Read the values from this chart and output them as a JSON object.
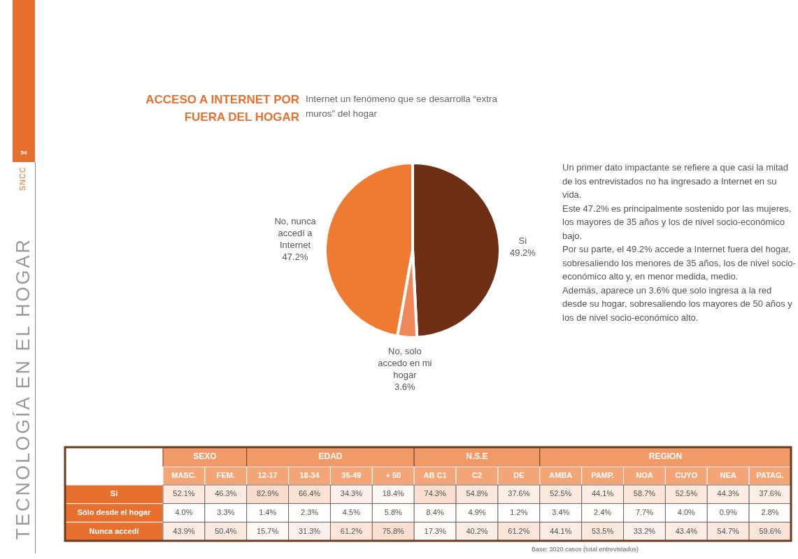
{
  "chart_data": [
    {
      "type": "pie",
      "title": "ACCESO A INTERNET POR FUERA DEL HOGAR",
      "subtitle": "Internet un fenómeno que se desarrolla “extra muros” del hogar",
      "categories": [
        "Si",
        "No, solo accedo en mi hogar",
        "No, nunca accedí a Internet"
      ],
      "values": [
        49.2,
        3.6,
        47.2
      ],
      "colors": [
        "#6e2f15",
        "#f0885a",
        "#ef7a32"
      ],
      "value_labels": [
        "49.2%",
        "3.6%",
        "47.2%"
      ],
      "legend": false,
      "annotations": [
        "Un primer dato impactante se refiere a que casi la mitad de los entrevistados no ha ingresado a Internet en su vida.",
        "Este 47.2% es principalmente sostenido por las mujeres, los mayores de 35 años y los de nivel socio-económico bajo.",
        "Por su parte, el 49.2% accede a Internet fuera del hogar, sobresaliendo los menores de 35 años, los de nivel socio-económico alto y, en menor medida, medio.",
        "Además, aparece un 3.6% que solo ingresa a la red desde su hogar, sobresaliendo los mayores de 50 años y los de nivel socio-económico alto.",
        "SNCC",
        "54",
        "TECNOLOGÍA EN EL HOGAR"
      ]
    },
    {
      "type": "heatmap",
      "categories": [
        "MASC.",
        "FEM.",
        "12-17",
        "18-34",
        "35-49",
        "+ 50",
        "AB C1",
        "C2",
        "DE",
        "AMBA",
        "PAMP.",
        "NOA",
        "CUYO",
        "NEA",
        "PATAG."
      ],
      "y_categories": [
        "Si",
        "Sólo desde el hogar",
        "Nunca accedí"
      ],
      "cells": [
        [
          52.1,
          46.3,
          82.9,
          66.4,
          34.3,
          18.4,
          74.3,
          54.8,
          37.6,
          52.5,
          44.1,
          58.7,
          52.5,
          44.3,
          37.6
        ],
        [
          4.0,
          3.3,
          1.4,
          2.3,
          4.5,
          5.8,
          8.4,
          4.9,
          1.2,
          3.4,
          2.4,
          7.7,
          4.0,
          0.9,
          2.8
        ],
        [
          43.9,
          50.4,
          15.7,
          31.3,
          61.2,
          75.8,
          17.3,
          40.2,
          61.2,
          44.1,
          53.5,
          33.2,
          43.4,
          54.7,
          59.6
        ]
      ],
      "cell_labels": [
        [
          "52.1%",
          "46.3%",
          "82.9%",
          "66.4%",
          "34.3%",
          "18.4%",
          "74.3%",
          "54.8%",
          "37.6%",
          "52.5%",
          "44.1%",
          "58.7%",
          "52.5%",
          "44.3%",
          "37.6%"
        ],
        [
          "4.0%",
          "3.3%",
          "1.4%",
          "2.3%",
          "4.5%",
          "5.8%",
          "8.4%",
          "4.9%",
          "1.2%",
          "3.4%",
          "2.4%",
          "7.7%",
          "4.0%",
          "0.9%",
          "2.8%"
        ],
        [
          "43.9%",
          "50.4%",
          "15.7%",
          "31.3%",
          "61.2%",
          "75.8%",
          "17.3%",
          "40.2%",
          "61.2%",
          "44.1%",
          "53.5%",
          "33.2%",
          "43.4%",
          "54.7%",
          "59.6%"
        ]
      ],
      "annotations": [
        "SEXO",
        "EDAD",
        "N.S.E",
        "REGION",
        "Base: 3020 casos (total entrevistados)"
      ]
    }
  ]
}
